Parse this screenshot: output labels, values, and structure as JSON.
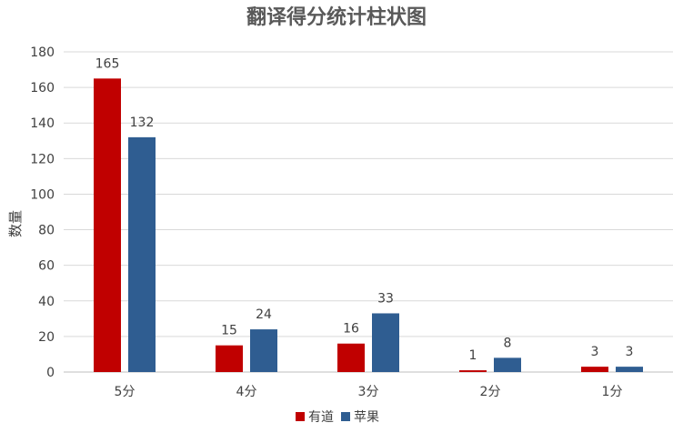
{
  "chart_data": {
    "type": "bar",
    "title": "翻译得分统计柱状图",
    "xlabel": "",
    "ylabel": "数量",
    "categories": [
      "5分",
      "4分",
      "3分",
      "2分",
      "1分"
    ],
    "series": [
      {
        "name": "有道",
        "values": [
          165,
          15,
          16,
          1,
          3
        ],
        "color": "#C00000"
      },
      {
        "name": "苹果",
        "values": [
          132,
          24,
          33,
          8,
          3
        ],
        "color": "#2F5D91"
      }
    ],
    "ylim": [
      0,
      180
    ],
    "yticks": [
      0,
      20,
      40,
      60,
      80,
      100,
      120,
      140,
      160,
      180
    ],
    "grid": true,
    "legend_position": "bottom",
    "data_labels": true
  }
}
